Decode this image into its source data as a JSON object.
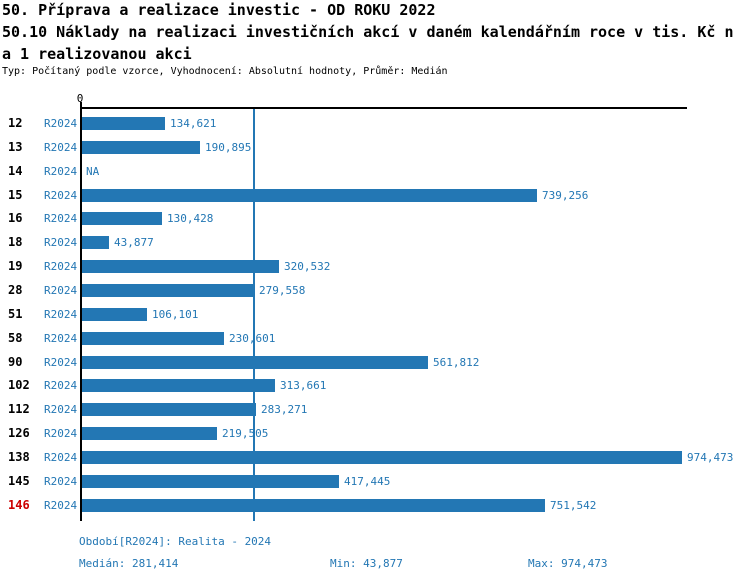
{
  "header": {
    "title_line1": "50. Příprava a realizace investic - OD ROKU 2022",
    "subtitle_line1": "50.10 Náklady na realizaci investičních akcí v daném kalendářním roce v tis. Kč n",
    "subtitle_line2": "a 1 realizovanou akci",
    "meta": "Typ: Počítaný podle vzorce, Vyhodnocení: Absolutní hodnoty, Průměr: Medián"
  },
  "chart_data": {
    "type": "bar",
    "orientation": "horizontal",
    "title": "50.10 Náklady na realizaci investičních akcí v daném kalendářním roce v tis. Kč na 1 realizovanou akci",
    "zero_label": "0",
    "period_label": "R2024",
    "categories": [
      "12",
      "13",
      "14",
      "15",
      "16",
      "18",
      "19",
      "28",
      "51",
      "58",
      "90",
      "102",
      "112",
      "126",
      "138",
      "145",
      "146"
    ],
    "series": [
      {
        "name": "R2024",
        "values": [
          134621,
          190895,
          null,
          739256,
          130428,
          43877,
          320532,
          279558,
          106101,
          230601,
          561812,
          313661,
          283271,
          219505,
          974473,
          417445,
          751542
        ]
      }
    ],
    "value_labels": [
      "134,621",
      "190,895",
      "NA",
      "739,256",
      "130,428",
      "43,877",
      "320,532",
      "279,558",
      "106,101",
      "230,601",
      "561,812",
      "313,661",
      "283,271",
      "219,505",
      "974,473",
      "417,445",
      "751,542"
    ],
    "xlim": [
      0,
      974473
    ],
    "median_value": 281414,
    "highlighted_category": "146",
    "grid": false,
    "legend": "none",
    "bar_color": "#2377b4",
    "highlight_color": "#cc0000"
  },
  "footer": {
    "period_info": "Období[R2024]: Realita - 2024",
    "median": "Medián: 281,414",
    "min": "Min: 43,877",
    "max": "Max: 974,473"
  }
}
